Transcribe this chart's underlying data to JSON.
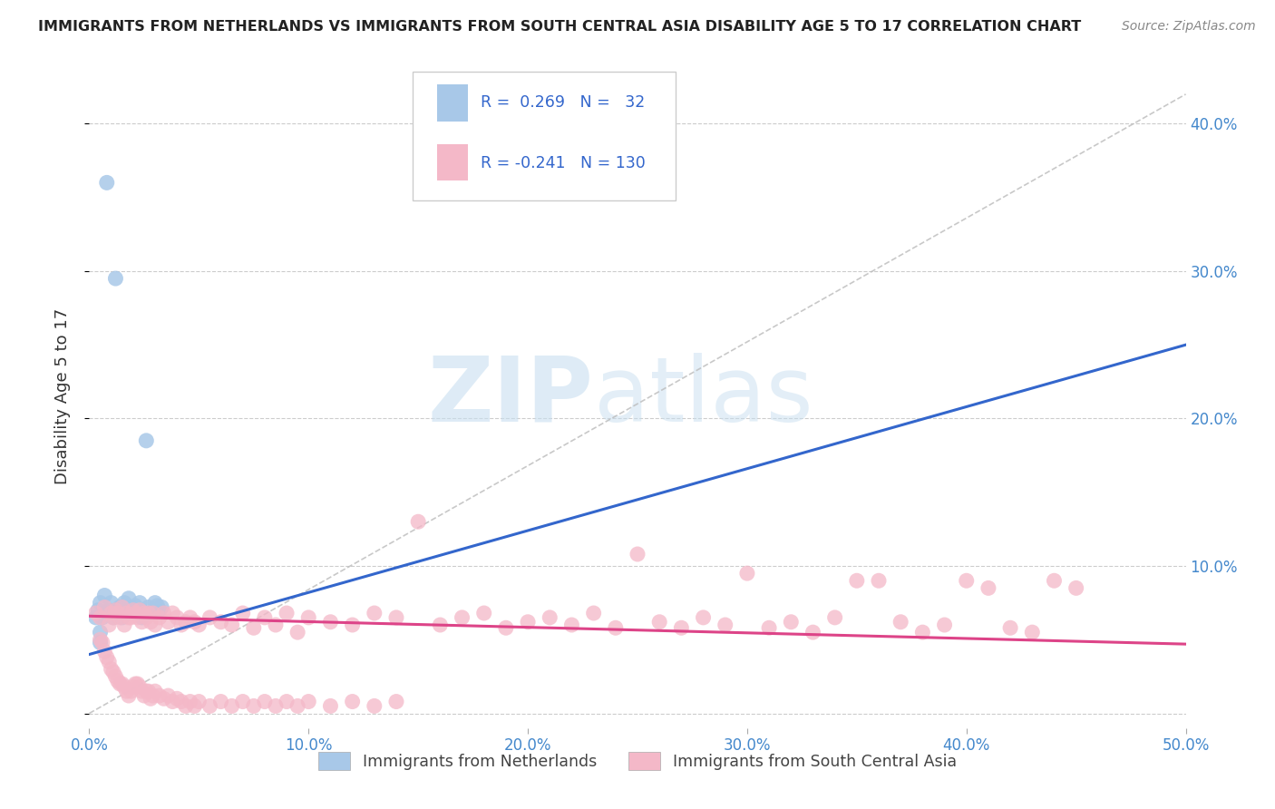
{
  "title": "IMMIGRANTS FROM NETHERLANDS VS IMMIGRANTS FROM SOUTH CENTRAL ASIA DISABILITY AGE 5 TO 17 CORRELATION CHART",
  "source": "Source: ZipAtlas.com",
  "ylabel": "Disability Age 5 to 17",
  "xlim": [
    0,
    0.5
  ],
  "ylim": [
    -0.01,
    0.44
  ],
  "xticks": [
    0.0,
    0.1,
    0.2,
    0.3,
    0.4,
    0.5
  ],
  "yticks": [
    0.0,
    0.1,
    0.2,
    0.3,
    0.4
  ],
  "xtick_labels": [
    "0.0%",
    "10.0%",
    "20.0%",
    "30.0%",
    "40.0%",
    "50.0%"
  ],
  "ytick_labels_right": [
    "",
    "10.0%",
    "20.0%",
    "30.0%",
    "40.0%"
  ],
  "blue_color": "#a8c8e8",
  "pink_color": "#f4b8c8",
  "blue_line_color": "#3366cc",
  "pink_line_color": "#dd4488",
  "watermark_zip": "ZIP",
  "watermark_atlas": "atlas",
  "background_color": "#ffffff",
  "tick_color": "#4488cc",
  "legend_label_1": "Immigrants from Netherlands",
  "legend_label_2": "Immigrants from South Central Asia",
  "blue_scatter_x": [
    0.003,
    0.004,
    0.005,
    0.006,
    0.007,
    0.008,
    0.009,
    0.01,
    0.011,
    0.012,
    0.013,
    0.014,
    0.015,
    0.016,
    0.017,
    0.018,
    0.019,
    0.02,
    0.021,
    0.022,
    0.023,
    0.024,
    0.025,
    0.026,
    0.027,
    0.028,
    0.03,
    0.031,
    0.032,
    0.033,
    0.005,
    0.005
  ],
  "blue_scatter_y": [
    0.065,
    0.07,
    0.075,
    0.065,
    0.08,
    0.36,
    0.07,
    0.075,
    0.065,
    0.295,
    0.068,
    0.072,
    0.065,
    0.075,
    0.068,
    0.078,
    0.07,
    0.07,
    0.073,
    0.068,
    0.075,
    0.065,
    0.068,
    0.185,
    0.072,
    0.068,
    0.075,
    0.073,
    0.07,
    0.072,
    0.055,
    0.048
  ],
  "pink_scatter_x": [
    0.003,
    0.005,
    0.007,
    0.009,
    0.01,
    0.011,
    0.012,
    0.013,
    0.014,
    0.015,
    0.016,
    0.017,
    0.018,
    0.019,
    0.02,
    0.021,
    0.022,
    0.023,
    0.024,
    0.025,
    0.026,
    0.027,
    0.028,
    0.029,
    0.03,
    0.032,
    0.034,
    0.036,
    0.038,
    0.04,
    0.042,
    0.044,
    0.046,
    0.048,
    0.05,
    0.055,
    0.06,
    0.065,
    0.07,
    0.075,
    0.08,
    0.085,
    0.09,
    0.095,
    0.1,
    0.11,
    0.12,
    0.13,
    0.14,
    0.15,
    0.16,
    0.17,
    0.18,
    0.19,
    0.2,
    0.21,
    0.22,
    0.23,
    0.24,
    0.25,
    0.26,
    0.27,
    0.28,
    0.29,
    0.3,
    0.31,
    0.32,
    0.33,
    0.34,
    0.35,
    0.36,
    0.37,
    0.38,
    0.39,
    0.4,
    0.41,
    0.42,
    0.43,
    0.44,
    0.45,
    0.005,
    0.006,
    0.007,
    0.008,
    0.009,
    0.01,
    0.011,
    0.012,
    0.013,
    0.014,
    0.015,
    0.016,
    0.017,
    0.018,
    0.019,
    0.02,
    0.021,
    0.022,
    0.023,
    0.024,
    0.025,
    0.026,
    0.027,
    0.028,
    0.029,
    0.03,
    0.032,
    0.034,
    0.036,
    0.038,
    0.04,
    0.042,
    0.044,
    0.046,
    0.048,
    0.05,
    0.055,
    0.06,
    0.065,
    0.07,
    0.075,
    0.08,
    0.085,
    0.09,
    0.095,
    0.1,
    0.11,
    0.12,
    0.13,
    0.14
  ],
  "pink_scatter_y": [
    0.068,
    0.065,
    0.072,
    0.06,
    0.068,
    0.065,
    0.07,
    0.068,
    0.065,
    0.072,
    0.06,
    0.068,
    0.065,
    0.065,
    0.07,
    0.068,
    0.065,
    0.07,
    0.062,
    0.068,
    0.065,
    0.068,
    0.062,
    0.068,
    0.06,
    0.065,
    0.068,
    0.062,
    0.068,
    0.065,
    0.06,
    0.062,
    0.065,
    0.062,
    0.06,
    0.065,
    0.062,
    0.06,
    0.068,
    0.058,
    0.065,
    0.06,
    0.068,
    0.055,
    0.065,
    0.062,
    0.06,
    0.068,
    0.065,
    0.13,
    0.06,
    0.065,
    0.068,
    0.058,
    0.062,
    0.065,
    0.06,
    0.068,
    0.058,
    0.108,
    0.062,
    0.058,
    0.065,
    0.06,
    0.095,
    0.058,
    0.062,
    0.055,
    0.065,
    0.09,
    0.09,
    0.062,
    0.055,
    0.06,
    0.09,
    0.085,
    0.058,
    0.055,
    0.09,
    0.085,
    0.05,
    0.048,
    0.042,
    0.038,
    0.035,
    0.03,
    0.028,
    0.025,
    0.022,
    0.02,
    0.02,
    0.018,
    0.015,
    0.012,
    0.015,
    0.018,
    0.02,
    0.02,
    0.018,
    0.015,
    0.012,
    0.015,
    0.015,
    0.01,
    0.012,
    0.015,
    0.012,
    0.01,
    0.012,
    0.008,
    0.01,
    0.008,
    0.005,
    0.008,
    0.005,
    0.008,
    0.005,
    0.008,
    0.005,
    0.008,
    0.005,
    0.008,
    0.005,
    0.008,
    0.005,
    0.008,
    0.005,
    0.008,
    0.005,
    0.008
  ],
  "blue_trend_x": [
    0.0,
    0.5
  ],
  "blue_trend_y_start": 0.04,
  "blue_trend_slope": 0.42,
  "pink_trend_x": [
    0.0,
    0.5
  ],
  "pink_trend_y_start": 0.066,
  "pink_trend_slope": -0.038
}
